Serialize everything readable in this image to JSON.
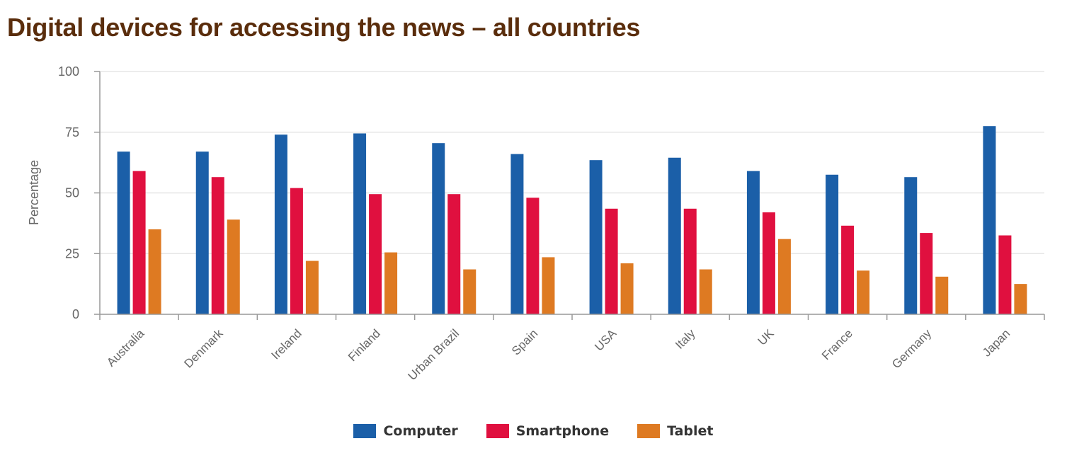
{
  "title": "Digital devices for accessing the news – all countries",
  "colors": {
    "computer": "#1b5fa8",
    "smartphone": "#e0103f",
    "tablet": "#de7a22",
    "grid": "#e6e6e6",
    "axis": "#999999",
    "title": "#5a2d0c"
  },
  "chart_data": {
    "type": "bar",
    "title": "Digital devices for accessing the news – all countries",
    "xlabel": "",
    "ylabel": "Percentage",
    "ylim": [
      0,
      100
    ],
    "yticks": [
      0,
      25,
      50,
      75,
      100
    ],
    "grid": true,
    "legend_position": "bottom-center",
    "categories": [
      "Australia",
      "Denmark",
      "Ireland",
      "Finland",
      "Urban Brazil",
      "Spain",
      "USA",
      "Italy",
      "UK",
      "France",
      "Germany",
      "Japan"
    ],
    "series": [
      {
        "name": "Computer",
        "color": "#1b5fa8",
        "values": [
          67,
          67,
          74,
          74.5,
          70.5,
          66,
          63.5,
          64.5,
          59,
          57.5,
          56.5,
          77.5
        ]
      },
      {
        "name": "Smartphone",
        "color": "#e0103f",
        "values": [
          59,
          56.5,
          52,
          49.5,
          49.5,
          48,
          43.5,
          43.5,
          42,
          36.5,
          33.5,
          32.5
        ]
      },
      {
        "name": "Tablet",
        "color": "#de7a22",
        "values": [
          35,
          39,
          22,
          25.5,
          18.5,
          23.5,
          21,
          18.5,
          31,
          18,
          15.5,
          12.5
        ]
      }
    ]
  }
}
